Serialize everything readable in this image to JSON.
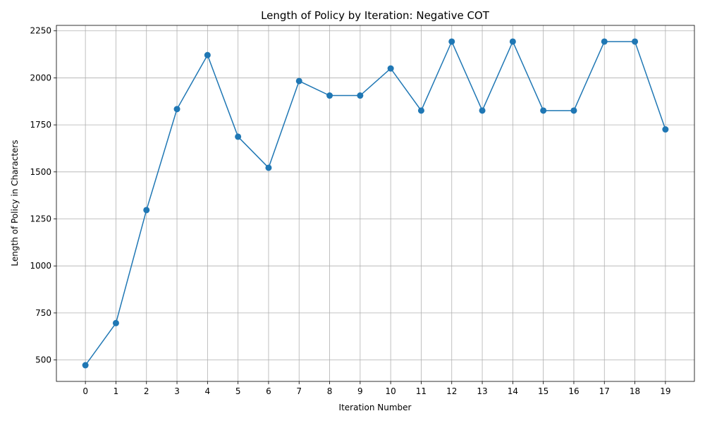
{
  "chart_data": {
    "type": "line",
    "title": "Length of Policy by Iteration: Negative COT",
    "xlabel": "Iteration Number",
    "ylabel": "Length of Policy in Characters",
    "x": [
      0,
      1,
      2,
      3,
      4,
      5,
      6,
      7,
      8,
      9,
      10,
      11,
      12,
      13,
      14,
      15,
      16,
      17,
      18,
      19
    ],
    "series": [
      {
        "values": [
          472,
          696,
          1297,
          1834,
          2121,
          1687,
          1522,
          1983,
          1906,
          1906,
          2050,
          1826,
          2193,
          1826,
          2193,
          1826,
          1826,
          2193,
          2193,
          1726
        ]
      }
    ],
    "xticks": [
      "0",
      "1",
      "2",
      "3",
      "4",
      "5",
      "6",
      "7",
      "8",
      "9",
      "10",
      "11",
      "12",
      "13",
      "14",
      "15",
      "16",
      "17",
      "18",
      "19"
    ],
    "yticks": [
      500,
      750,
      1000,
      1250,
      1500,
      1750,
      2000,
      2250
    ],
    "ytick_labels": [
      "500",
      "750",
      "1000",
      "1250",
      "1500",
      "1750",
      "2000",
      "2250"
    ],
    "xlim": [
      -0.95,
      19.95
    ],
    "ylim": [
      386,
      2279
    ],
    "grid": true,
    "color": "#1f77b4"
  }
}
